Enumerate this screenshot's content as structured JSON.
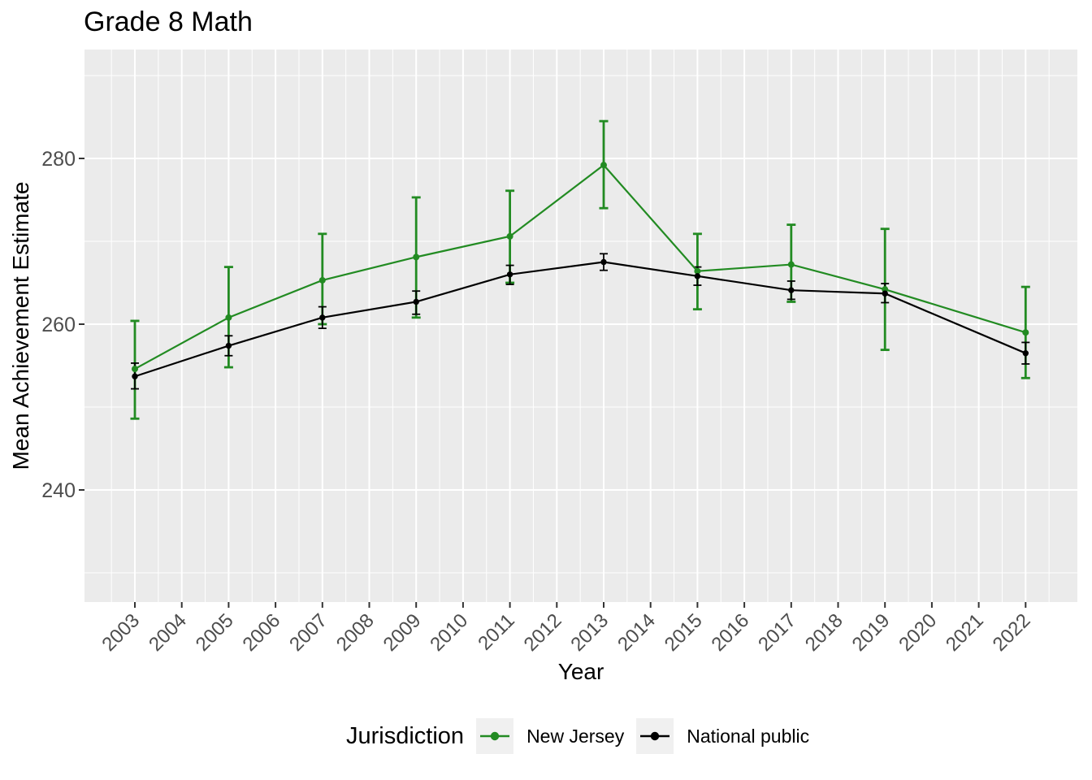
{
  "title": "Grade 8 Math",
  "x_axis": {
    "label": "Year",
    "ticks": [
      "2003",
      "2004",
      "2005",
      "2006",
      "2007",
      "2008",
      "2009",
      "2010",
      "2011",
      "2012",
      "2013",
      "2014",
      "2015",
      "2016",
      "2017",
      "2018",
      "2019",
      "2020",
      "2021",
      "2022"
    ]
  },
  "y_axis": {
    "label": "Mean Achievement Estimate",
    "ticks": [
      "240",
      "260",
      "280"
    ]
  },
  "legend": {
    "title": "Jurisdiction",
    "items": [
      {
        "label": "New Jersey",
        "color": "#228B22"
      },
      {
        "label": "National public",
        "color": "#000000"
      }
    ]
  },
  "colors": {
    "panel_background": "#EBEBEB",
    "gridline": "#FFFFFF",
    "tick_mark": "#333333",
    "tick_label": "#4D4D4D",
    "legend_key_background": "#F0F0F0",
    "new_jersey": "#228B22",
    "national_public": "#000000"
  },
  "chart_data": {
    "type": "line",
    "title": "Grade 8 Math",
    "xlabel": "Year",
    "ylabel": "Mean Achievement Estimate",
    "x": [
      2003,
      2005,
      2007,
      2009,
      2011,
      2013,
      2015,
      2017,
      2019,
      2022
    ],
    "series": [
      {
        "name": "New Jersey",
        "color": "#228B22",
        "values": [
          254.6,
          260.8,
          265.3,
          268.1,
          270.6,
          279.2,
          266.4,
          267.2,
          264.2,
          259.0
        ],
        "ci_low": [
          248.6,
          254.8,
          260.0,
          260.8,
          265.0,
          274.0,
          261.8,
          262.7,
          256.9,
          253.5
        ],
        "ci_high": [
          260.4,
          266.9,
          270.9,
          275.3,
          276.1,
          284.5,
          270.9,
          272.0,
          271.5,
          264.5
        ]
      },
      {
        "name": "National public",
        "color": "#000000",
        "values": [
          253.7,
          257.4,
          260.8,
          262.7,
          266.0,
          267.5,
          265.8,
          264.1,
          263.7,
          256.5
        ],
        "ci_low": [
          252.2,
          256.2,
          259.5,
          261.2,
          264.8,
          266.5,
          264.7,
          263.0,
          262.6,
          255.2
        ],
        "ci_high": [
          255.3,
          258.6,
          262.1,
          264.0,
          267.1,
          268.5,
          266.9,
          265.2,
          264.9,
          257.8
        ]
      }
    ],
    "x_ticks": [
      2003,
      2004,
      2005,
      2006,
      2007,
      2008,
      2009,
      2010,
      2011,
      2012,
      2013,
      2014,
      2015,
      2016,
      2017,
      2018,
      2019,
      2020,
      2021,
      2022
    ],
    "y_ticks": [
      240,
      260,
      280
    ],
    "y_minor_ticks": [
      230,
      250,
      270,
      290
    ],
    "ylim": [
      227,
      293
    ],
    "xlim": [
      2001.9,
      2023.1
    ],
    "error_bars": true,
    "grid": true,
    "legend_position": "bottom"
  }
}
